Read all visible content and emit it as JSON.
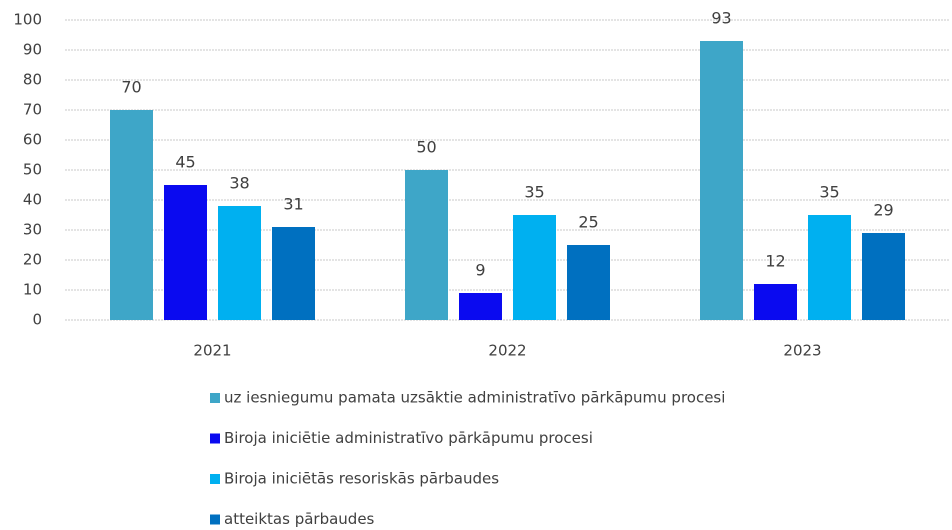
{
  "chart_data": {
    "type": "bar",
    "categories": [
      "2021",
      "2022",
      "2023"
    ],
    "series": [
      {
        "name": "uz iesniegumu pamata uzsāktie administratīvo pārkāpumu procesi",
        "color": "#3ea6c8",
        "values": [
          70,
          50,
          93
        ]
      },
      {
        "name": "Biroja iniciētie administratīvo pārkāpumu procesi",
        "color": "#0a0af0",
        "values": [
          45,
          9,
          12
        ]
      },
      {
        "name": "Biroja iniciētās resoriskās pārbaudes",
        "color": "#00b0f0",
        "values": [
          38,
          35,
          35
        ]
      },
      {
        "name": "atteiktas pārbaudes",
        "color": "#0070c0",
        "values": [
          31,
          25,
          29
        ]
      }
    ],
    "ylim": [
      0,
      100
    ],
    "yticks": [
      0,
      10,
      20,
      30,
      40,
      50,
      60,
      70,
      80,
      90,
      100
    ],
    "grid": true,
    "legend": "bottom"
  }
}
